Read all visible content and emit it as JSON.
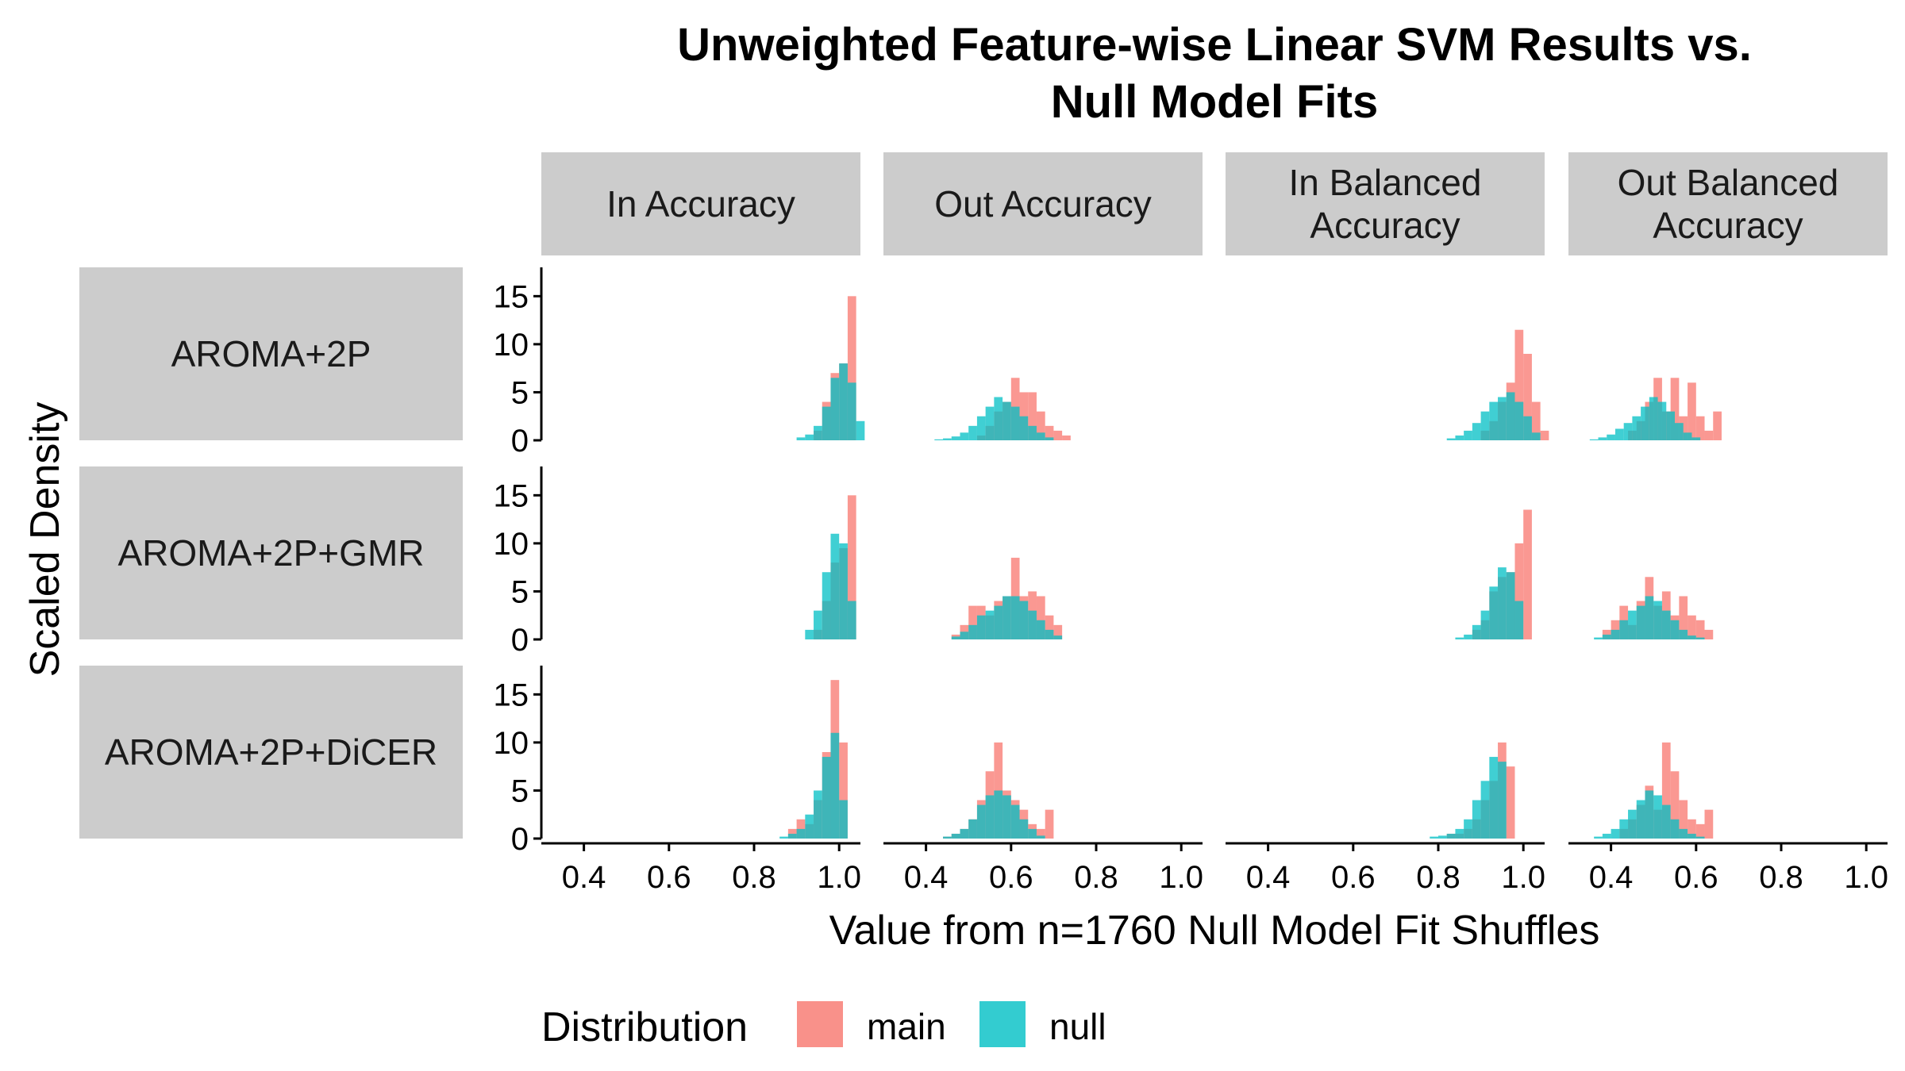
{
  "chart_data": {
    "type": "histogram",
    "title_lines": [
      "Unweighted Feature-wise Linear SVM Results vs.",
      "Null Model Fits"
    ],
    "xlabel": "Value from n=1760 Null Model Fit Shuffles",
    "ylabel": "Scaled Density",
    "xlim": [
      0.3,
      1.05
    ],
    "ylim": [
      0,
      18
    ],
    "x_ticks": [
      0.4,
      0.6,
      0.8,
      1.0
    ],
    "x_tick_labels": [
      "0.4",
      "0.6",
      "0.8",
      "1.0"
    ],
    "y_ticks": [
      0,
      5,
      10,
      15
    ],
    "y_tick_labels": [
      "0",
      "5",
      "10",
      "15"
    ],
    "bin_width": 0.02,
    "column_facets": [
      {
        "key": "in_acc",
        "label_lines": [
          "In Accuracy"
        ]
      },
      {
        "key": "out_acc",
        "label_lines": [
          "Out Accuracy"
        ]
      },
      {
        "key": "in_bal",
        "label_lines": [
          "In Balanced",
          "Accuracy"
        ]
      },
      {
        "key": "out_bal",
        "label_lines": [
          "Out Balanced",
          "Accuracy"
        ]
      }
    ],
    "row_facets": [
      "AROMA+2P",
      "AROMA+2P+GMR",
      "AROMA+2P+DiCER"
    ],
    "legend": {
      "title": "Distribution",
      "position": "bottom",
      "items": [
        {
          "name": "main",
          "color": "#F8766D"
        },
        {
          "name": "null",
          "color": "#00BFC4"
        }
      ]
    },
    "panels": [
      {
        "row": 0,
        "col": 0,
        "main": {
          "start": 0.94,
          "values": [
            1,
            4,
            7,
            8,
            15
          ]
        },
        "null": {
          "start": 0.9,
          "values": [
            0.3,
            0.6,
            1.5,
            3.5,
            6.5,
            8,
            6,
            2
          ]
        }
      },
      {
        "row": 0,
        "col": 1,
        "main": {
          "start": 0.52,
          "values": [
            0.5,
            1.5,
            3,
            4,
            6.5,
            5,
            5,
            3,
            1.5,
            1,
            0.5
          ]
        },
        "null": {
          "start": 0.42,
          "values": [
            0.1,
            0.2,
            0.4,
            0.8,
            1.5,
            2.5,
            3.5,
            4.5,
            4,
            3.5,
            2.5,
            1.5,
            0.8,
            0.3
          ]
        }
      },
      {
        "row": 0,
        "col": 2,
        "main": {
          "start": 0.9,
          "values": [
            1,
            2,
            4,
            6,
            11.5,
            9,
            4,
            1
          ]
        },
        "null": {
          "start": 0.82,
          "values": [
            0.2,
            0.5,
            1,
            1.8,
            3,
            4,
            4.5,
            5,
            4,
            2.5,
            0.8
          ]
        }
      },
      {
        "row": 0,
        "col": 3,
        "main": {
          "start": 0.44,
          "values": [
            1,
            2,
            4,
            6.5,
            3,
            6.5,
            2.5,
            6,
            2.5,
            1,
            3
          ]
        },
        "null": {
          "start": 0.35,
          "values": [
            0.1,
            0.3,
            0.6,
            1.2,
            1.8,
            2.5,
            3.5,
            4.5,
            4,
            3,
            1.8,
            0.8,
            0.3
          ]
        }
      },
      {
        "row": 1,
        "col": 0,
        "main": {
          "start": 0.94,
          "values": [
            1,
            4,
            8,
            9.5,
            15
          ]
        },
        "null": {
          "start": 0.92,
          "values": [
            1,
            3,
            7,
            11,
            10,
            4
          ]
        }
      },
      {
        "row": 1,
        "col": 1,
        "main": {
          "start": 0.46,
          "values": [
            0.5,
            1.5,
            3.5,
            3.5,
            2.5,
            4,
            4.5,
            8.5,
            4.5,
            5,
            4.5,
            2.5,
            1.5
          ]
        },
        "null": {
          "start": 0.46,
          "values": [
            0.3,
            0.8,
            1.5,
            2.5,
            3,
            3.5,
            4.5,
            4.5,
            4,
            3,
            2,
            1,
            0.4
          ]
        }
      },
      {
        "row": 1,
        "col": 2,
        "main": {
          "start": 0.88,
          "values": [
            1,
            2,
            5,
            6.5,
            7,
            10,
            13.5
          ]
        },
        "null": {
          "start": 0.84,
          "values": [
            0.2,
            0.5,
            1.5,
            3,
            5.5,
            7.5,
            7,
            4
          ]
        }
      },
      {
        "row": 1,
        "col": 3,
        "main": {
          "start": 0.38,
          "values": [
            1,
            2,
            3.5,
            1.5,
            4,
            6.5,
            3.5,
            5,
            2.5,
            4.5,
            2.5,
            2,
            1
          ]
        },
        "null": {
          "start": 0.36,
          "values": [
            0.2,
            0.5,
            1,
            2,
            3,
            3.5,
            4.5,
            4,
            3,
            2,
            1,
            0.4,
            0.2
          ]
        }
      },
      {
        "row": 2,
        "col": 0,
        "main": {
          "start": 0.88,
          "values": [
            1,
            2,
            1.5,
            4,
            9,
            16.5,
            10
          ]
        },
        "null": {
          "start": 0.86,
          "values": [
            0.2,
            0.5,
            1,
            2.5,
            5,
            8.5,
            11,
            4
          ]
        }
      },
      {
        "row": 2,
        "col": 1,
        "main": {
          "start": 0.44,
          "values": [
            0.2,
            0.5,
            1,
            2,
            4,
            7,
            10,
            5,
            4,
            3,
            1.5,
            1,
            3
          ]
        },
        "null": {
          "start": 0.44,
          "values": [
            0.2,
            0.5,
            1,
            2,
            3.5,
            4.5,
            5,
            4.5,
            3.5,
            2,
            1,
            0.3
          ]
        }
      },
      {
        "row": 2,
        "col": 2,
        "main": {
          "start": 0.82,
          "values": [
            0.5,
            0.5,
            1,
            2,
            4,
            6,
            10,
            7.5
          ]
        },
        "null": {
          "start": 0.78,
          "values": [
            0.2,
            0.3,
            0.5,
            1,
            2,
            4,
            6,
            8.5,
            8
          ]
        }
      },
      {
        "row": 2,
        "col": 3,
        "main": {
          "start": 0.42,
          "values": [
            1,
            2,
            3.5,
            5.5,
            3,
            10,
            7,
            4,
            2,
            1.5,
            3
          ]
        },
        "null": {
          "start": 0.36,
          "values": [
            0.2,
            0.5,
            1,
            2,
            3,
            4,
            5,
            4.5,
            3.5,
            2,
            1,
            0.5,
            0.2
          ]
        }
      }
    ]
  }
}
